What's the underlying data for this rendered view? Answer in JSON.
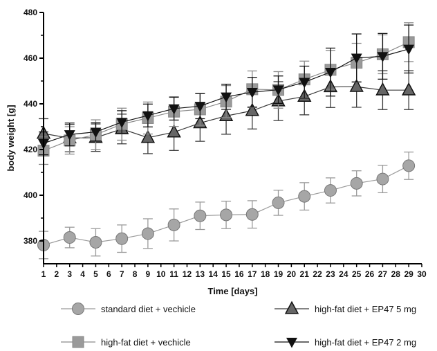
{
  "chart_data": {
    "type": "line",
    "xlabel": "Time [days]",
    "ylabel": "body weight [g]",
    "xlim": [
      1,
      30
    ],
    "ylim": [
      370,
      480
    ],
    "x_ticks": [
      1,
      2,
      3,
      4,
      5,
      6,
      7,
      8,
      9,
      10,
      11,
      12,
      13,
      14,
      15,
      16,
      17,
      18,
      19,
      20,
      21,
      22,
      23,
      24,
      25,
      26,
      27,
      28,
      29,
      30
    ],
    "y_ticks": [
      380,
      400,
      420,
      440,
      460,
      480
    ],
    "grid": false,
    "legend_position": "bottom",
    "series": [
      {
        "name": "standard diet + vechicle",
        "marker": "circle",
        "color": "#a6a6a6",
        "line_color": "#9a9a9a",
        "x": [
          1,
          3,
          5,
          7,
          9,
          11,
          13,
          15,
          17,
          19,
          21,
          23,
          25,
          27,
          29
        ],
        "y": [
          378.2,
          381.5,
          379.4,
          381.0,
          383.2,
          387.0,
          391.0,
          391.4,
          391.6,
          396.7,
          399.5,
          402.1,
          405.2,
          407.1,
          412.9
        ],
        "err": [
          6.0,
          4.5,
          6.0,
          6.0,
          6.5,
          7.0,
          6.0,
          6.0,
          6.0,
          5.5,
          6.0,
          5.5,
          5.5,
          6.0,
          6.0
        ]
      },
      {
        "name": "high-fat diet + EP47 5 mg",
        "marker": "triangle-up",
        "color": "#666666",
        "line_color": "#3a3a3a",
        "x": [
          1,
          3,
          5,
          7,
          9,
          11,
          13,
          15,
          17,
          19,
          21,
          23,
          25,
          27,
          29
        ],
        "y": [
          427.0,
          425.0,
          425.2,
          429.0,
          425.2,
          427.6,
          431.6,
          434.7,
          437.0,
          441.2,
          443.2,
          447.4,
          447.5,
          446.0,
          446.0
        ],
        "err": [
          6.5,
          6.0,
          6.0,
          6.5,
          7.0,
          8.0,
          8.0,
          8.0,
          8.0,
          8.5,
          8.0,
          9.0,
          9.0,
          8.5,
          8.5
        ]
      },
      {
        "name": "high-fat diet + vechicle",
        "marker": "square",
        "color": "#9a9a9a",
        "line_color": "#8a8a8a",
        "x": [
          1,
          3,
          5,
          7,
          9,
          11,
          13,
          15,
          17,
          19,
          21,
          23,
          25,
          27,
          29
        ],
        "y": [
          419.5,
          424.0,
          426.5,
          431.1,
          433.8,
          436.6,
          437.6,
          441.0,
          446.4,
          446.1,
          450.7,
          454.9,
          458.0,
          461.7,
          467.0
        ],
        "err": [
          6.0,
          6.0,
          6.5,
          7.0,
          7.0,
          6.5,
          7.0,
          7.0,
          8.0,
          8.0,
          8.0,
          8.5,
          8.5,
          8.5,
          8.5
        ]
      },
      {
        "name": "high-fat diet + EP47 2 mg",
        "marker": "triangle-down",
        "color": "#111111",
        "line_color": "#111111",
        "x": [
          1,
          3,
          5,
          7,
          9,
          11,
          13,
          15,
          17,
          19,
          21,
          23,
          25,
          27,
          29
        ],
        "y": [
          422.7,
          426.6,
          427.7,
          432.0,
          434.9,
          437.9,
          439.0,
          443.1,
          445.1,
          446.2,
          449.5,
          453.9,
          460.1,
          460.8,
          464.0
        ],
        "err": [
          5.0,
          5.0,
          4.0,
          5.0,
          5.0,
          5.0,
          5.5,
          5.5,
          6.5,
          6.0,
          7.0,
          10.5,
          10.5,
          10.0,
          10.5
        ]
      }
    ]
  }
}
